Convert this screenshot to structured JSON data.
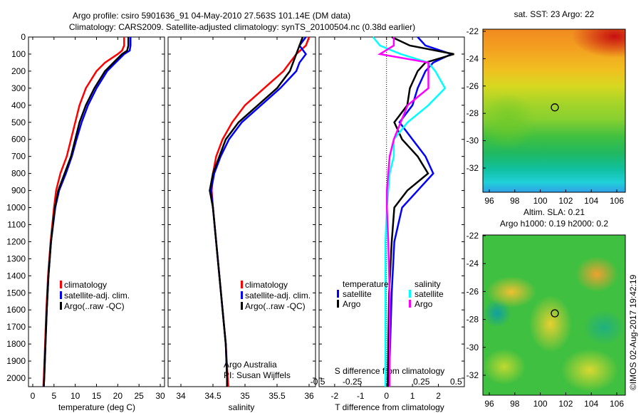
{
  "title_line1": "Argo profile: csiro 5901636_91 04-May-2010 27.563S 101.14E (DM data)",
  "title_line2": "Climatology: CARS2009. Satellite-adjusted climatology: synTS_20100504.nc (0.38d earlier)",
  "colors": {
    "climatology": "#ff0000",
    "satellite": "#0000ff",
    "argo": "#000000",
    "sal_satellite": "#00ffff",
    "sal_argo": "#ff00ff"
  },
  "chart_data": [
    {
      "type": "line",
      "xlabel": "temperature (deg C)",
      "ylabel": "",
      "xlim": [
        -1,
        31
      ],
      "ylim": [
        2050,
        0
      ],
      "xticks": [
        0,
        5,
        10,
        15,
        20,
        25,
        30
      ],
      "yticks": [
        0,
        100,
        200,
        300,
        400,
        500,
        600,
        700,
        800,
        900,
        1000,
        1100,
        1200,
        1300,
        1400,
        1500,
        1600,
        1700,
        1800,
        1900,
        2000
      ],
      "legend": [
        "climatology",
        "satellite-adj. clim.",
        "Argo(..raw -QC)"
      ],
      "depth": [
        0,
        50,
        80,
        100,
        150,
        200,
        300,
        400,
        500,
        600,
        700,
        800,
        900,
        1000,
        1200,
        1400,
        1600,
        1800,
        2000,
        2050
      ],
      "series": [
        {
          "name": "climatology",
          "values": [
            21.5,
            21.5,
            21,
            20,
            17,
            15,
            12.5,
            11,
            10,
            9,
            8,
            6.5,
            5.5,
            5,
            4.2,
            3.6,
            3.2,
            2.9,
            2.6,
            2.5
          ]
        },
        {
          "name": "satellite-adj. clim.",
          "values": [
            23,
            23,
            22.8,
            21.5,
            19.5,
            17.5,
            15,
            13,
            11.5,
            10.3,
            9.2,
            7.8,
            6.2,
            5.3,
            4.3,
            3.7,
            3.3,
            3,
            2.7,
            2.6
          ]
        },
        {
          "name": "Argo(..raw -QC)",
          "values": [
            22.5,
            22.5,
            22.2,
            21,
            19,
            17,
            14.5,
            12.5,
            11,
            10,
            9,
            7.5,
            6,
            5.2,
            4.3,
            3.7,
            3.3,
            3,
            2.7,
            2.6
          ]
        }
      ]
    },
    {
      "type": "line",
      "xlabel": "salinity",
      "xlim": [
        33.8,
        36.1
      ],
      "ylim": [
        2050,
        0
      ],
      "xticks": [
        34,
        34.5,
        35,
        35.5,
        36
      ],
      "legend": [
        "climatology",
        "satellite-adj. clim.",
        "Argo(..raw -QC)"
      ],
      "annotation": [
        "Argo Australia",
        "PI: Susan Wijffels"
      ],
      "depth": [
        0,
        50,
        100,
        150,
        200,
        300,
        400,
        500,
        600,
        700,
        800,
        900,
        1000,
        1200,
        1400,
        1600,
        1800,
        2000,
        2050
      ],
      "series": [
        {
          "name": "climatology",
          "values": [
            36,
            35.95,
            35.8,
            35.7,
            35.6,
            35.3,
            35,
            34.8,
            34.65,
            34.55,
            34.5,
            34.48,
            34.5,
            34.55,
            34.6,
            34.65,
            34.7,
            34.73,
            34.74
          ]
        },
        {
          "name": "satellite-adj. clim.",
          "values": [
            35.95,
            35.85,
            35.95,
            35.85,
            35.8,
            35.55,
            35.25,
            34.95,
            34.75,
            34.62,
            34.52,
            34.47,
            34.5,
            34.55,
            34.6,
            34.65,
            34.7,
            34.72,
            34.72
          ]
        },
        {
          "name": "Argo(..raw -QC)",
          "values": [
            35.9,
            35.85,
            35.8,
            35.75,
            35.7,
            35.5,
            35.2,
            34.9,
            34.7,
            34.6,
            34.5,
            34.45,
            34.5,
            34.55,
            34.6,
            34.65,
            34.7,
            34.72,
            34.72
          ]
        }
      ]
    },
    {
      "type": "line",
      "xlabel": "T difference from climatology",
      "x2label": "S difference from climatology",
      "xlim": [
        -2.6,
        3
      ],
      "x2lim": [
        -0.49,
        0.56
      ],
      "ylim": [
        2050,
        0
      ],
      "xticks": [
        -2,
        -1,
        0,
        1,
        2
      ],
      "x2ticks": [
        "-0.5",
        "-0.25",
        "0",
        "0.25",
        "0.5"
      ],
      "legend_temperature": {
        "title": "temperature",
        "items": [
          "satellite",
          "Argo"
        ]
      },
      "legend_salinity": {
        "title": "salinity",
        "items": [
          "satellite",
          "Argo"
        ]
      },
      "depth": [
        0,
        50,
        100,
        150,
        200,
        300,
        400,
        500,
        600,
        700,
        800,
        900,
        1000,
        1200,
        1500,
        2000,
        2050
      ],
      "series": [
        {
          "name": "temperature satellite",
          "axis": "T",
          "values": [
            1.2,
            1.5,
            2.5,
            1.8,
            1.5,
            1.2,
            1,
            0.5,
            1,
            1.5,
            1.8,
            1.2,
            0.6,
            0.3,
            0.2,
            0.1,
            0.1
          ]
        },
        {
          "name": "temperature Argo",
          "axis": "T",
          "values": [
            0.2,
            0.9,
            2.6,
            1.5,
            1.2,
            0.9,
            0.8,
            0.3,
            0.6,
            1.2,
            1.6,
            0.8,
            0.3,
            0.2,
            0.1,
            0.05,
            0.05
          ]
        },
        {
          "name": "salinity satellite",
          "axis": "S",
          "values": [
            -0.1,
            -0.05,
            0.1,
            0.3,
            0.35,
            0.42,
            0.3,
            0.15,
            0.05,
            0.05,
            0.02,
            0.01,
            0,
            -0.01,
            -0.01,
            -0.01,
            -0.01
          ]
        },
        {
          "name": "salinity Argo",
          "axis": "S",
          "values": [
            0.05,
            0.05,
            -0.05,
            0.3,
            0.3,
            0.3,
            0.15,
            0.1,
            0.05,
            0.02,
            0.01,
            0,
            0,
            0.01,
            0.02,
            0.02,
            0.02
          ]
        }
      ]
    }
  ],
  "maps": {
    "sst_title": "sat. SST: 23 Argo: 22",
    "sla_title1": "Altim. SLA: 0.21",
    "sla_title2": "Argo h1000: 0.19 h2000: 0.2",
    "lon_ticks": [
      "96",
      "98",
      "100",
      "102",
      "104",
      "106"
    ],
    "lat_ticks": [
      "-22",
      "-24",
      "-26",
      "-28",
      "-30",
      "-32"
    ],
    "profile_lon": 101.14,
    "profile_lat": -27.563
  },
  "credit": "©IMOS 02-Aug-2017 19:42:19"
}
